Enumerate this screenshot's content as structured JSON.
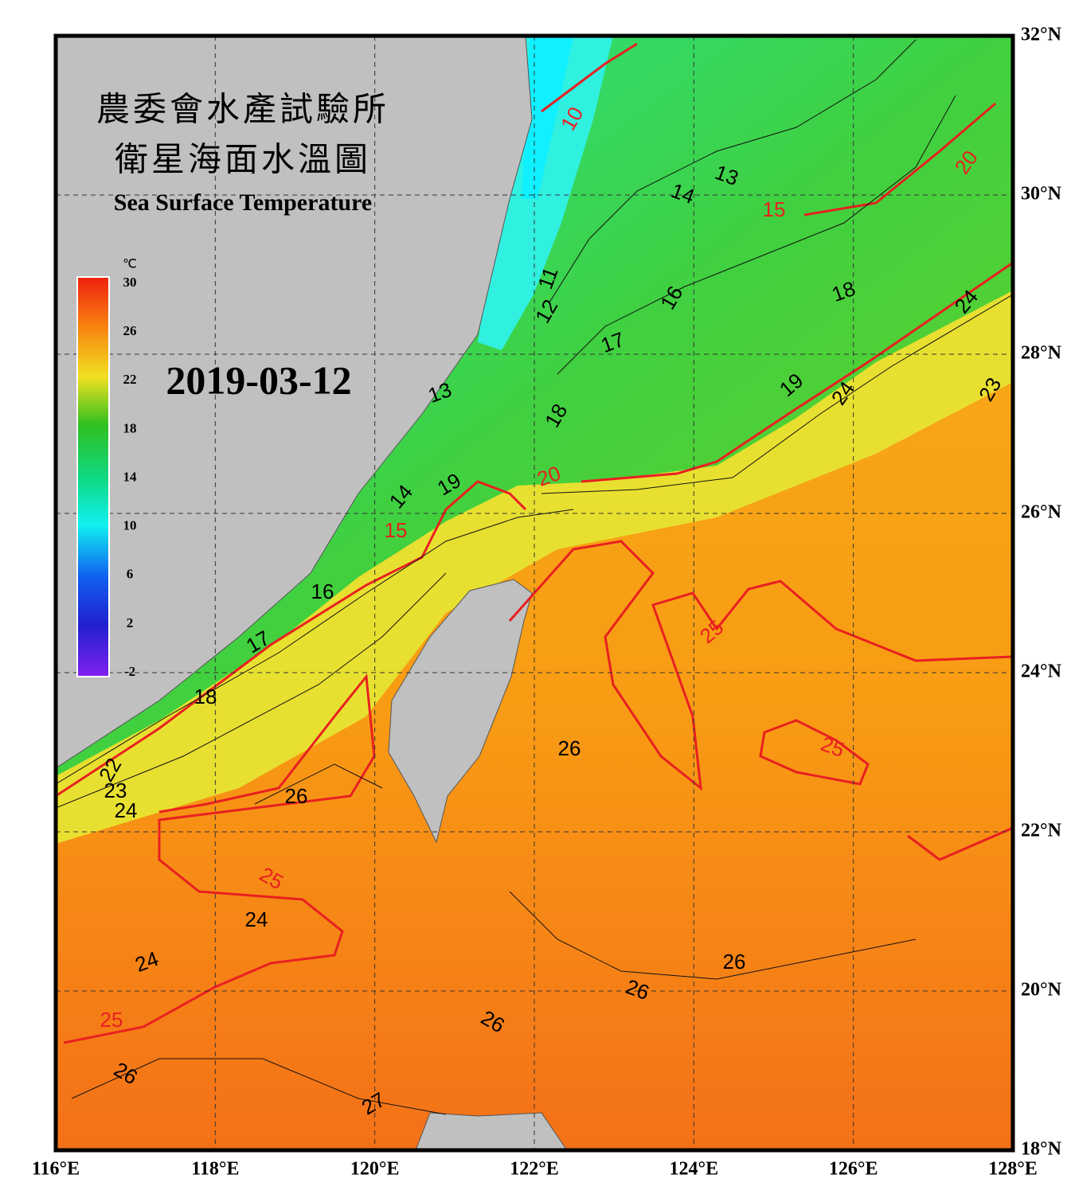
{
  "title_zh": "農委會水產試驗所",
  "subtitle_zh": "衛星海面水溫圖",
  "title_en": "Sea Surface Temperature",
  "date": "2019-03-12",
  "map": {
    "type": "map",
    "xlim": [
      116,
      128
    ],
    "ylim": [
      18,
      32
    ],
    "xticks": [
      {
        "value": 116,
        "label": "116°E"
      },
      {
        "value": 118,
        "label": "118°E"
      },
      {
        "value": 120,
        "label": "120°E"
      },
      {
        "value": 122,
        "label": "122°E"
      },
      {
        "value": 124,
        "label": "124°E"
      },
      {
        "value": 126,
        "label": "126°E"
      },
      {
        "value": 128,
        "label": "128°E"
      }
    ],
    "yticks": [
      {
        "value": 32,
        "label": "32°N"
      },
      {
        "value": 30,
        "label": "30°N"
      },
      {
        "value": 28,
        "label": "28°N"
      },
      {
        "value": 26,
        "label": "26°N"
      },
      {
        "value": 24,
        "label": "24°N"
      },
      {
        "value": 22,
        "label": "22°N"
      },
      {
        "value": 20,
        "label": "20°N"
      },
      {
        "value": 18,
        "label": "18°N"
      }
    ],
    "grid": true,
    "colorbar": {
      "unit": "℃",
      "range": [
        -2,
        30
      ],
      "ticks": [
        30,
        26,
        22,
        18,
        14,
        10,
        6,
        2,
        -2
      ]
    },
    "major_contour_labels": [
      10,
      15,
      20,
      15,
      20,
      25,
      25,
      25,
      25
    ],
    "minor_contour_labels": [
      13,
      14,
      11,
      12,
      16,
      17,
      18,
      24,
      13,
      18,
      19,
      24,
      23,
      19,
      14,
      16,
      17,
      18,
      26,
      26,
      22,
      23,
      24,
      24,
      24,
      26,
      26,
      26,
      26,
      27
    ]
  }
}
